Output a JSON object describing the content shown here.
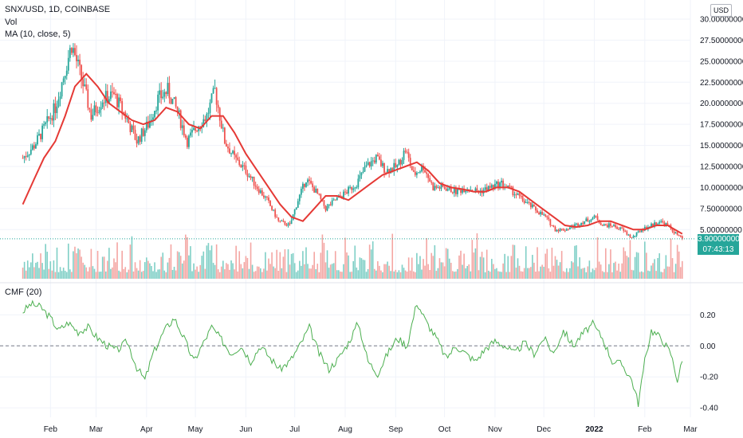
{
  "header": {
    "symbol_line": "SNX/USD, 1D, COINBASE",
    "volume_label": "Vol",
    "ma_label": "MA (10, close, 5)",
    "cmf_label": "CMF (20)",
    "currency": "USD"
  },
  "last_price": {
    "value": "3.90000000",
    "countdown": "07:43:13"
  },
  "colors": {
    "up": "#26a69a",
    "down": "#ef5350",
    "ma": "#e53935",
    "cmf": "#4caf50",
    "volume_up": "#7fcfc6",
    "volume_down": "#f4a6a3"
  },
  "chart_data": [
    {
      "type": "candlestick",
      "title": "SNX/USD, 1D, COINBASE",
      "x_axis_ticks": [
        "Feb",
        "Mar",
        "Apr",
        "May",
        "Jun",
        "Jul",
        "Aug",
        "Sep",
        "Oct",
        "Nov",
        "Dec",
        "2022",
        "Feb",
        "Mar"
      ],
      "y_axis_ticks": [
        "30.00000000",
        "27.50000000",
        "25.00000000",
        "22.50000000",
        "20.00000000",
        "17.50000000",
        "15.00000000",
        "12.50000000",
        "10.00000000",
        "7.50000000",
        "5.00000000"
      ],
      "ylim": [
        2.0,
        30.0
      ],
      "price_path": [
        [
          "2021-01-15",
          13.5
        ],
        [
          "2021-01-22",
          15.0
        ],
        [
          "2021-01-28",
          17.0
        ],
        [
          "2021-02-04",
          19.5
        ],
        [
          "2021-02-10",
          24.0
        ],
        [
          "2021-02-14",
          27.0
        ],
        [
          "2021-02-20",
          23.0
        ],
        [
          "2021-02-26",
          18.5
        ],
        [
          "2021-03-05",
          20.5
        ],
        [
          "2021-03-12",
          21.0
        ],
        [
          "2021-03-19",
          18.5
        ],
        [
          "2021-03-26",
          15.5
        ],
        [
          "2021-04-02",
          17.5
        ],
        [
          "2021-04-08",
          20.5
        ],
        [
          "2021-04-14",
          21.5
        ],
        [
          "2021-04-20",
          19.0
        ],
        [
          "2021-04-26",
          15.5
        ],
        [
          "2021-05-03",
          17.5
        ],
        [
          "2021-05-08",
          18.5
        ],
        [
          "2021-05-13",
          21.5
        ],
        [
          "2021-05-19",
          15.5
        ],
        [
          "2021-05-25",
          13.5
        ],
        [
          "2021-06-01",
          12.0
        ],
        [
          "2021-06-08",
          10.0
        ],
        [
          "2021-06-14",
          8.5
        ],
        [
          "2021-06-21",
          6.0
        ],
        [
          "2021-06-28",
          5.5
        ],
        [
          "2021-07-03",
          8.5
        ],
        [
          "2021-07-08",
          11.0
        ],
        [
          "2021-07-14",
          9.5
        ],
        [
          "2021-07-20",
          7.5
        ],
        [
          "2021-07-26",
          8.5
        ],
        [
          "2021-08-02",
          9.5
        ],
        [
          "2021-08-08",
          10.5
        ],
        [
          "2021-08-14",
          12.5
        ],
        [
          "2021-08-20",
          13.5
        ],
        [
          "2021-08-26",
          12.0
        ],
        [
          "2021-09-02",
          12.5
        ],
        [
          "2021-09-07",
          14.5
        ],
        [
          "2021-09-12",
          11.5
        ],
        [
          "2021-09-18",
          12.5
        ],
        [
          "2021-09-24",
          10.0
        ],
        [
          "2021-10-01",
          10.0
        ],
        [
          "2021-10-08",
          9.5
        ],
        [
          "2021-10-15",
          10.0
        ],
        [
          "2021-10-22",
          9.5
        ],
        [
          "2021-10-29",
          10.0
        ],
        [
          "2021-11-05",
          10.5
        ],
        [
          "2021-11-12",
          9.5
        ],
        [
          "2021-11-18",
          8.5
        ],
        [
          "2021-11-25",
          7.5
        ],
        [
          "2021-12-02",
          6.5
        ],
        [
          "2021-12-08",
          5.0
        ],
        [
          "2021-12-14",
          5.0
        ],
        [
          "2021-12-20",
          5.5
        ],
        [
          "2021-12-26",
          6.0
        ],
        [
          "2022-01-02",
          6.5
        ],
        [
          "2022-01-06",
          5.5
        ],
        [
          "2022-01-12",
          5.5
        ],
        [
          "2022-01-18",
          5.0
        ],
        [
          "2022-01-24",
          4.0
        ],
        [
          "2022-01-30",
          5.0
        ],
        [
          "2022-02-05",
          5.5
        ],
        [
          "2022-02-10",
          6.0
        ],
        [
          "2022-02-15",
          5.5
        ],
        [
          "2022-02-20",
          4.5
        ],
        [
          "2022-02-24",
          3.9
        ]
      ],
      "ma_path": [
        [
          "2021-01-15",
          8.0
        ],
        [
          "2021-01-22",
          11.0
        ],
        [
          "2021-01-28",
          13.5
        ],
        [
          "2021-02-04",
          15.5
        ],
        [
          "2021-02-10",
          18.5
        ],
        [
          "2021-02-16",
          22.0
        ],
        [
          "2021-02-23",
          23.5
        ],
        [
          "2021-03-02",
          22.0
        ],
        [
          "2021-03-09",
          20.0
        ],
        [
          "2021-03-16",
          19.0
        ],
        [
          "2021-03-23",
          18.0
        ],
        [
          "2021-03-30",
          17.5
        ],
        [
          "2021-04-06",
          18.0
        ],
        [
          "2021-04-13",
          19.5
        ],
        [
          "2021-04-20",
          19.0
        ],
        [
          "2021-04-27",
          17.5
        ],
        [
          "2021-05-04",
          17.0
        ],
        [
          "2021-05-11",
          18.5
        ],
        [
          "2021-05-18",
          18.5
        ],
        [
          "2021-05-25",
          16.5
        ],
        [
          "2021-06-01",
          14.0
        ],
        [
          "2021-06-08",
          12.0
        ],
        [
          "2021-06-15",
          10.0
        ],
        [
          "2021-06-22",
          8.0
        ],
        [
          "2021-06-29",
          6.5
        ],
        [
          "2021-07-06",
          6.0
        ],
        [
          "2021-07-13",
          7.5
        ],
        [
          "2021-07-20",
          9.0
        ],
        [
          "2021-07-27",
          9.0
        ],
        [
          "2021-08-03",
          8.5
        ],
        [
          "2021-08-10",
          9.5
        ],
        [
          "2021-08-17",
          10.5
        ],
        [
          "2021-08-24",
          11.5
        ],
        [
          "2021-08-31",
          12.0
        ],
        [
          "2021-09-07",
          12.5
        ],
        [
          "2021-09-14",
          13.0
        ],
        [
          "2021-09-21",
          12.0
        ],
        [
          "2021-09-28",
          10.5
        ],
        [
          "2021-10-05",
          10.0
        ],
        [
          "2021-10-12",
          9.8
        ],
        [
          "2021-10-19",
          9.5
        ],
        [
          "2021-10-26",
          9.5
        ],
        [
          "2021-11-02",
          10.0
        ],
        [
          "2021-11-09",
          10.0
        ],
        [
          "2021-11-16",
          9.5
        ],
        [
          "2021-11-23",
          8.5
        ],
        [
          "2021-11-30",
          7.5
        ],
        [
          "2021-12-07",
          6.5
        ],
        [
          "2021-12-14",
          5.5
        ],
        [
          "2021-12-21",
          5.3
        ],
        [
          "2021-12-28",
          5.5
        ],
        [
          "2022-01-04",
          6.0
        ],
        [
          "2022-01-11",
          6.0
        ],
        [
          "2022-01-18",
          5.5
        ],
        [
          "2022-01-25",
          5.0
        ],
        [
          "2022-02-01",
          5.0
        ],
        [
          "2022-02-08",
          5.5
        ],
        [
          "2022-02-15",
          5.5
        ],
        [
          "2022-02-24",
          4.5
        ]
      ]
    },
    {
      "type": "line",
      "title": "CMF (20)",
      "y_axis_ticks": [
        "0.20",
        "0.00",
        "-0.20",
        "-0.40"
      ],
      "ylim": [
        -0.42,
        0.32
      ],
      "zero_line": 0.0,
      "cmf_path": [
        [
          "2021-01-15",
          0.22
        ],
        [
          "2021-01-20",
          0.27
        ],
        [
          "2021-01-26",
          0.25
        ],
        [
          "2021-02-01",
          0.18
        ],
        [
          "2021-02-06",
          0.1
        ],
        [
          "2021-02-12",
          0.15
        ],
        [
          "2021-02-18",
          0.09
        ],
        [
          "2021-02-24",
          0.12
        ],
        [
          "2021-03-02",
          0.05
        ],
        [
          "2021-03-08",
          0.0
        ],
        [
          "2021-03-14",
          -0.03
        ],
        [
          "2021-03-20",
          0.03
        ],
        [
          "2021-03-26",
          -0.14
        ],
        [
          "2021-03-31",
          -0.22
        ],
        [
          "2021-04-05",
          -0.05
        ],
        [
          "2021-04-12",
          0.1
        ],
        [
          "2021-04-18",
          0.18
        ],
        [
          "2021-04-24",
          0.05
        ],
        [
          "2021-04-30",
          -0.1
        ],
        [
          "2021-05-05",
          0.0
        ],
        [
          "2021-05-11",
          0.12
        ],
        [
          "2021-05-17",
          0.04
        ],
        [
          "2021-05-23",
          -0.05
        ],
        [
          "2021-05-29",
          0.0
        ],
        [
          "2021-06-04",
          -0.1
        ],
        [
          "2021-06-10",
          0.0
        ],
        [
          "2021-06-16",
          -0.08
        ],
        [
          "2021-06-22",
          -0.15
        ],
        [
          "2021-06-28",
          -0.1
        ],
        [
          "2021-07-04",
          0.0
        ],
        [
          "2021-07-10",
          0.12
        ],
        [
          "2021-07-16",
          -0.05
        ],
        [
          "2021-07-22",
          -0.15
        ],
        [
          "2021-07-28",
          -0.08
        ],
        [
          "2021-08-03",
          0.02
        ],
        [
          "2021-08-09",
          0.15
        ],
        [
          "2021-08-15",
          -0.1
        ],
        [
          "2021-08-21",
          -0.18
        ],
        [
          "2021-08-27",
          -0.05
        ],
        [
          "2021-09-02",
          0.05
        ],
        [
          "2021-09-08",
          0.0
        ],
        [
          "2021-09-14",
          0.28
        ],
        [
          "2021-09-20",
          0.15
        ],
        [
          "2021-09-26",
          0.05
        ],
        [
          "2021-10-02",
          -0.08
        ],
        [
          "2021-10-08",
          0.0
        ],
        [
          "2021-10-14",
          -0.05
        ],
        [
          "2021-10-20",
          -0.1
        ],
        [
          "2021-10-26",
          -0.02
        ],
        [
          "2021-11-01",
          0.03
        ],
        [
          "2021-11-07",
          0.0
        ],
        [
          "2021-11-13",
          -0.05
        ],
        [
          "2021-11-19",
          0.02
        ],
        [
          "2021-11-25",
          -0.05
        ],
        [
          "2021-12-01",
          0.05
        ],
        [
          "2021-12-07",
          -0.05
        ],
        [
          "2021-12-13",
          0.1
        ],
        [
          "2021-12-19",
          0.0
        ],
        [
          "2021-12-25",
          0.08
        ],
        [
          "2021-12-31",
          0.14
        ],
        [
          "2022-01-06",
          0.05
        ],
        [
          "2022-01-12",
          -0.1
        ],
        [
          "2022-01-18",
          -0.12
        ],
        [
          "2022-01-24",
          -0.22
        ],
        [
          "2022-01-28",
          -0.37
        ],
        [
          "2022-02-01",
          -0.1
        ],
        [
          "2022-02-05",
          0.1
        ],
        [
          "2022-02-11",
          0.05
        ],
        [
          "2022-02-17",
          -0.05
        ],
        [
          "2022-02-21",
          -0.22
        ],
        [
          "2022-02-24",
          -0.1
        ]
      ]
    }
  ]
}
